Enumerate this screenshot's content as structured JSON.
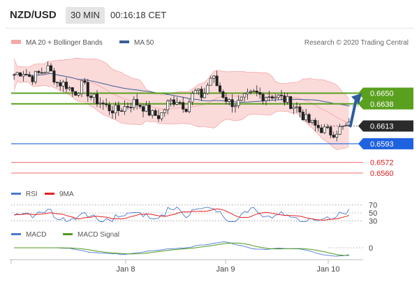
{
  "header": {
    "pair": "NZD/USD",
    "timeframe": "30 MIN",
    "time": "00:16:18 CET"
  },
  "legend": {
    "ma20bb": "MA 20 + Bollinger Bands",
    "ma50": "MA 50",
    "research": "Research © 2020 Trading Central",
    "rsi": "RSI",
    "rsi_ma": "9MA",
    "macd": "MACD",
    "macd_signal": "MACD Signal"
  },
  "colors": {
    "candle": "#222222",
    "bb_fill": "#fbdada",
    "bb_line": "#f4a9a9",
    "ma50": "#3b5f95",
    "resistance": "#5aa01f",
    "support": "#1f62df",
    "pivot_red": "#f08a8a",
    "red_label": "#d81e1e",
    "arrow": "#2f5d9c",
    "rsi": "#4b78d0",
    "rsi_ma": "#e52020",
    "macd": "#4b78d0",
    "macd_signal": "#4f9a1e"
  },
  "chart_data": [
    {
      "type": "candlestick",
      "panel": "price",
      "x_labels": [
        "Jan 8",
        "Jan 9",
        "Jan 10"
      ],
      "ylim": [
        0.6552,
        0.67
      ],
      "price_levels": [
        {
          "value": 0.665,
          "label": "0.6650",
          "kind": "resistance"
        },
        {
          "value": 0.6638,
          "label": "0.6638",
          "kind": "resistance"
        },
        {
          "value": 0.6613,
          "label": "0.6613",
          "kind": "last"
        },
        {
          "value": 0.6593,
          "label": "0.6593",
          "kind": "support"
        },
        {
          "value": 0.6572,
          "label": "0.6572",
          "kind": "pivot"
        },
        {
          "value": 0.656,
          "label": "0.6560",
          "kind": "pivot"
        }
      ],
      "series": [
        {
          "name": "MA 20 + Bollinger Bands"
        },
        {
          "name": "MA 50"
        }
      ],
      "close_path": [
        0.6671,
        0.6675,
        0.6667,
        0.6673,
        0.6678,
        0.6662,
        0.666,
        0.665,
        0.666,
        0.6645,
        0.664,
        0.6633,
        0.663,
        0.6635,
        0.664,
        0.6635,
        0.6626,
        0.6624,
        0.664,
        0.6643,
        0.6634,
        0.6652,
        0.6646,
        0.667,
        0.6652,
        0.664,
        0.6638,
        0.6645,
        0.665,
        0.6647,
        0.6648,
        0.6645,
        0.664,
        0.6633,
        0.662,
        0.6613,
        0.6609,
        0.6605,
        0.661,
        0.6613
      ],
      "projection": {
        "from": 0.6613,
        "to": 0.665
      }
    },
    {
      "type": "line",
      "panel": "rsi",
      "series": [
        {
          "name": "RSI"
        },
        {
          "name": "9MA"
        }
      ],
      "levels": [
        70,
        50,
        30
      ],
      "level_labels": [
        "70",
        "50",
        "30"
      ]
    },
    {
      "type": "line",
      "panel": "macd",
      "series": [
        {
          "name": "MACD"
        },
        {
          "name": "MACD Signal"
        }
      ],
      "level_labels": [
        "0"
      ]
    }
  ]
}
